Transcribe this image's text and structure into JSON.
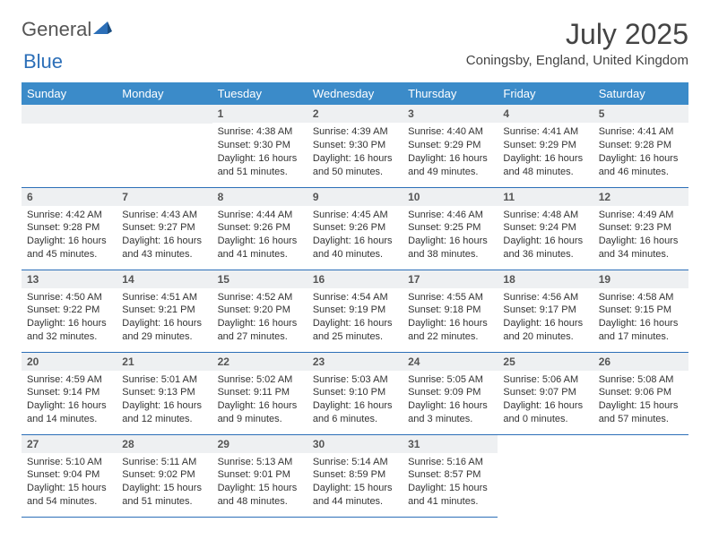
{
  "brand": {
    "part1": "General",
    "part2": "Blue"
  },
  "header": {
    "title": "July 2025",
    "location": "Coningsby, England, United Kingdom"
  },
  "colors": {
    "header_bg": "#3b8bc9",
    "header_text": "#ffffff",
    "daynum_bg": "#eef0f2",
    "border": "#2c6fb8",
    "brand_blue": "#2c6fb8"
  },
  "dayNames": [
    "Sunday",
    "Monday",
    "Tuesday",
    "Wednesday",
    "Thursday",
    "Friday",
    "Saturday"
  ],
  "startOffset": 2,
  "days": [
    {
      "n": 1,
      "sr": "4:38 AM",
      "ss": "9:30 PM",
      "dl": "16 hours and 51 minutes."
    },
    {
      "n": 2,
      "sr": "4:39 AM",
      "ss": "9:30 PM",
      "dl": "16 hours and 50 minutes."
    },
    {
      "n": 3,
      "sr": "4:40 AM",
      "ss": "9:29 PM",
      "dl": "16 hours and 49 minutes."
    },
    {
      "n": 4,
      "sr": "4:41 AM",
      "ss": "9:29 PM",
      "dl": "16 hours and 48 minutes."
    },
    {
      "n": 5,
      "sr": "4:41 AM",
      "ss": "9:28 PM",
      "dl": "16 hours and 46 minutes."
    },
    {
      "n": 6,
      "sr": "4:42 AM",
      "ss": "9:28 PM",
      "dl": "16 hours and 45 minutes."
    },
    {
      "n": 7,
      "sr": "4:43 AM",
      "ss": "9:27 PM",
      "dl": "16 hours and 43 minutes."
    },
    {
      "n": 8,
      "sr": "4:44 AM",
      "ss": "9:26 PM",
      "dl": "16 hours and 41 minutes."
    },
    {
      "n": 9,
      "sr": "4:45 AM",
      "ss": "9:26 PM",
      "dl": "16 hours and 40 minutes."
    },
    {
      "n": 10,
      "sr": "4:46 AM",
      "ss": "9:25 PM",
      "dl": "16 hours and 38 minutes."
    },
    {
      "n": 11,
      "sr": "4:48 AM",
      "ss": "9:24 PM",
      "dl": "16 hours and 36 minutes."
    },
    {
      "n": 12,
      "sr": "4:49 AM",
      "ss": "9:23 PM",
      "dl": "16 hours and 34 minutes."
    },
    {
      "n": 13,
      "sr": "4:50 AM",
      "ss": "9:22 PM",
      "dl": "16 hours and 32 minutes."
    },
    {
      "n": 14,
      "sr": "4:51 AM",
      "ss": "9:21 PM",
      "dl": "16 hours and 29 minutes."
    },
    {
      "n": 15,
      "sr": "4:52 AM",
      "ss": "9:20 PM",
      "dl": "16 hours and 27 minutes."
    },
    {
      "n": 16,
      "sr": "4:54 AM",
      "ss": "9:19 PM",
      "dl": "16 hours and 25 minutes."
    },
    {
      "n": 17,
      "sr": "4:55 AM",
      "ss": "9:18 PM",
      "dl": "16 hours and 22 minutes."
    },
    {
      "n": 18,
      "sr": "4:56 AM",
      "ss": "9:17 PM",
      "dl": "16 hours and 20 minutes."
    },
    {
      "n": 19,
      "sr": "4:58 AM",
      "ss": "9:15 PM",
      "dl": "16 hours and 17 minutes."
    },
    {
      "n": 20,
      "sr": "4:59 AM",
      "ss": "9:14 PM",
      "dl": "16 hours and 14 minutes."
    },
    {
      "n": 21,
      "sr": "5:01 AM",
      "ss": "9:13 PM",
      "dl": "16 hours and 12 minutes."
    },
    {
      "n": 22,
      "sr": "5:02 AM",
      "ss": "9:11 PM",
      "dl": "16 hours and 9 minutes."
    },
    {
      "n": 23,
      "sr": "5:03 AM",
      "ss": "9:10 PM",
      "dl": "16 hours and 6 minutes."
    },
    {
      "n": 24,
      "sr": "5:05 AM",
      "ss": "9:09 PM",
      "dl": "16 hours and 3 minutes."
    },
    {
      "n": 25,
      "sr": "5:06 AM",
      "ss": "9:07 PM",
      "dl": "16 hours and 0 minutes."
    },
    {
      "n": 26,
      "sr": "5:08 AM",
      "ss": "9:06 PM",
      "dl": "15 hours and 57 minutes."
    },
    {
      "n": 27,
      "sr": "5:10 AM",
      "ss": "9:04 PM",
      "dl": "15 hours and 54 minutes."
    },
    {
      "n": 28,
      "sr": "5:11 AM",
      "ss": "9:02 PM",
      "dl": "15 hours and 51 minutes."
    },
    {
      "n": 29,
      "sr": "5:13 AM",
      "ss": "9:01 PM",
      "dl": "15 hours and 48 minutes."
    },
    {
      "n": 30,
      "sr": "5:14 AM",
      "ss": "8:59 PM",
      "dl": "15 hours and 44 minutes."
    },
    {
      "n": 31,
      "sr": "5:16 AM",
      "ss": "8:57 PM",
      "dl": "15 hours and 41 minutes."
    }
  ],
  "labels": {
    "sunrise": "Sunrise:",
    "sunset": "Sunset:",
    "daylight": "Daylight:"
  }
}
